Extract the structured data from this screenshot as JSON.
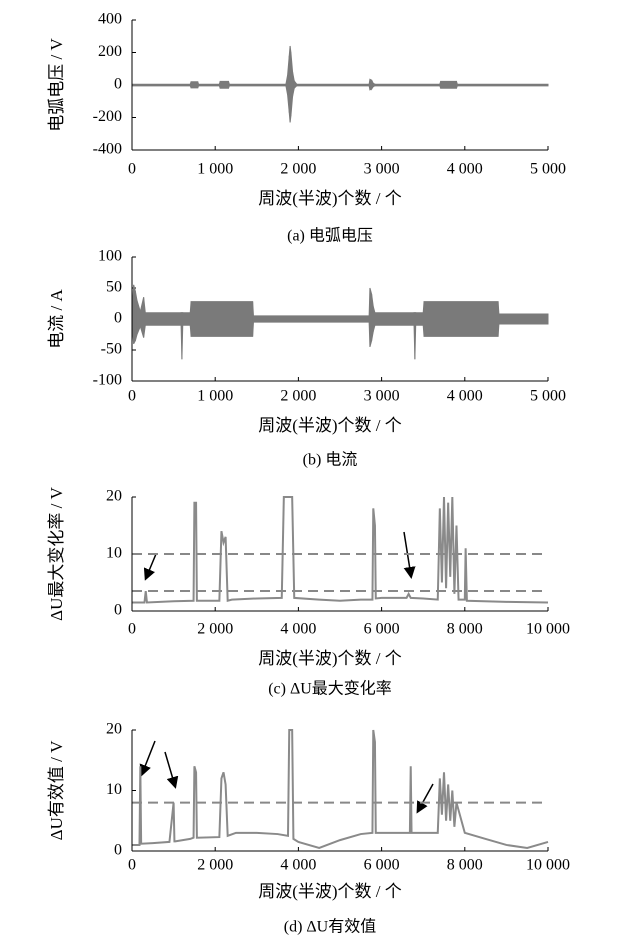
{
  "chart_data": [
    {
      "type": "area",
      "caption": "(a)  电弧电压",
      "xlabel": "周波(半波)个数 / 个",
      "ylabel": "电弧电压 / V",
      "xlim": [
        0,
        5000
      ],
      "ylim": [
        -400,
        400
      ],
      "xticks": [
        0,
        {
          "value": 1000,
          "label": "1 000"
        },
        {
          "value": 2000,
          "label": "2 000"
        },
        {
          "value": 3000,
          "label": "3 000"
        },
        {
          "value": 4000,
          "label": "4 000"
        },
        {
          "value": 5000,
          "label": "5 000"
        }
      ],
      "yticks": [
        -400,
        -200,
        0,
        200,
        400
      ],
      "x": [
        0,
        700,
        710,
        790,
        800,
        1050,
        1060,
        1160,
        1170,
        1850,
        1870,
        1890,
        1900,
        1910,
        1930,
        1950,
        1980,
        2850,
        2860,
        2880,
        2900,
        2920,
        3700,
        3710,
        3900,
        3910,
        5000
      ],
      "series": [
        {
          "color": "#7a7a7a",
          "values": [
            5,
            5,
            20,
            20,
            5,
            5,
            22,
            22,
            5,
            5,
            60,
            180,
            240,
            200,
            80,
            25,
            5,
            5,
            35,
            30,
            10,
            5,
            5,
            22,
            22,
            5,
            5
          ]
        },
        {
          "color": "#7a7a7a",
          "values": [
            -5,
            -5,
            -18,
            -18,
            -5,
            -5,
            -20,
            -20,
            -5,
            -5,
            -60,
            -170,
            -230,
            -190,
            -70,
            -20,
            -5,
            -5,
            -30,
            -25,
            -10,
            -5,
            -5,
            -20,
            -20,
            -5,
            -5
          ]
        }
      ]
    },
    {
      "type": "area",
      "caption": "(b)  电流",
      "xlabel": "周波(半波)个数 / 个",
      "ylabel": "电流 / A",
      "xlim": [
        0,
        5000
      ],
      "ylim": [
        -100,
        100
      ],
      "xticks": [
        0,
        {
          "value": 1000,
          "label": "1 000"
        },
        {
          "value": 2000,
          "label": "2 000"
        },
        {
          "value": 3000,
          "label": "3 000"
        },
        {
          "value": 4000,
          "label": "4 000"
        },
        {
          "value": 5000,
          "label": "5 000"
        }
      ],
      "yticks": [
        -100,
        -50,
        0,
        50,
        100
      ],
      "x": [
        0,
        20,
        40,
        60,
        100,
        140,
        160,
        590,
        600,
        610,
        700,
        710,
        1450,
        1460,
        2850,
        2860,
        2880,
        2900,
        2920,
        3390,
        3400,
        3410,
        3500,
        3510,
        4400,
        4410,
        5000
      ],
      "series": [
        {
          "color": "#7a7a7a",
          "values": [
            10,
            55,
            45,
            30,
            12,
            35,
            10,
            10,
            10,
            10,
            10,
            28,
            28,
            5,
            5,
            50,
            40,
            20,
            10,
            10,
            10,
            10,
            10,
            28,
            28,
            8,
            8
          ]
        },
        {
          "color": "#7a7a7a",
          "values": [
            -10,
            -40,
            -35,
            -25,
            -12,
            -30,
            -10,
            -10,
            -65,
            -10,
            -10,
            -28,
            -28,
            -5,
            -5,
            -45,
            -35,
            -20,
            -10,
            -10,
            -65,
            -10,
            -10,
            -28,
            -28,
            -8,
            -8
          ]
        }
      ]
    },
    {
      "type": "line",
      "caption": "(c)  ΔU最大变化率",
      "xlabel": "周波(半波)个数 / 个",
      "ylabel": "ΔU最大变化率 / V",
      "xlim": [
        0,
        10000
      ],
      "ylim": [
        0,
        20
      ],
      "xticks": [
        0,
        {
          "value": 2000,
          "label": "2 000"
        },
        {
          "value": 4000,
          "label": "4 000"
        },
        {
          "value": 6000,
          "label": "6 000"
        },
        {
          "value": 8000,
          "label": "8 000"
        },
        {
          "value": 10000,
          "label": "10 000"
        }
      ],
      "yticks": [
        0,
        10,
        20
      ],
      "hlines": [
        10,
        3.5
      ],
      "x": [
        0,
        300,
        330,
        360,
        1000,
        1480,
        1500,
        1540,
        1560,
        2100,
        2150,
        2200,
        2250,
        2300,
        2400,
        3000,
        3600,
        3650,
        3700,
        3800,
        3850,
        3900,
        4500,
        5000,
        5500,
        5780,
        5800,
        5840,
        5860,
        6000,
        6600,
        6650,
        6700,
        7000,
        7350,
        7400,
        7450,
        7500,
        7550,
        7600,
        7650,
        7700,
        7750,
        7800,
        7850,
        8000,
        8020,
        8050,
        9000,
        10000
      ],
      "series": [
        {
          "color": "#8a8a8a",
          "values": [
            1.5,
            1.5,
            3.5,
            1.5,
            1.7,
            1.8,
            19,
            19,
            1.8,
            1.8,
            14,
            12,
            13,
            1.8,
            2,
            2.2,
            2.3,
            20,
            20,
            20,
            20,
            2.3,
            2,
            1.8,
            2,
            2,
            18,
            15,
            2.2,
            2.3,
            2.3,
            3,
            2.3,
            2.2,
            2,
            18,
            5,
            20,
            4,
            19,
            6,
            20,
            3,
            15,
            2,
            2,
            11,
            1.8,
            1.6,
            1.5
          ]
        }
      ]
    },
    {
      "type": "line",
      "caption": "(d) ΔU有效值",
      "xlabel": "周波(半波)个数 / 个",
      "ylabel": "ΔU有效值 / V",
      "xlim": [
        0,
        10000
      ],
      "ylim": [
        0,
        20
      ],
      "xticks": [
        0,
        {
          "value": 2000,
          "label": "2 000"
        },
        {
          "value": 4000,
          "label": "4 000"
        },
        {
          "value": 6000,
          "label": "6 000"
        },
        {
          "value": 8000,
          "label": "8 000"
        },
        {
          "value": 10000,
          "label": "10 000"
        }
      ],
      "yticks": [
        0,
        10,
        20
      ],
      "hlines": [
        8
      ],
      "x": [
        0,
        180,
        200,
        220,
        500,
        900,
        1000,
        1020,
        1040,
        1400,
        1480,
        1500,
        1540,
        1560,
        2100,
        2150,
        2200,
        2250,
        2300,
        2500,
        3000,
        3500,
        3750,
        3780,
        3850,
        3880,
        4000,
        4500,
        5000,
        5500,
        5780,
        5800,
        5840,
        5860,
        6200,
        6600,
        6680,
        6700,
        6720,
        7000,
        7350,
        7400,
        7450,
        7500,
        7550,
        7600,
        7650,
        7700,
        7750,
        7800,
        8000,
        8500,
        9000,
        9500,
        10000
      ],
      "series": [
        {
          "color": "#8a8a8a",
          "values": [
            1,
            1,
            14,
            1.2,
            1.3,
            1.5,
            8,
            1.6,
            1.6,
            2,
            2.2,
            14,
            13,
            2.2,
            2.3,
            12,
            13,
            11,
            2.5,
            3,
            3,
            2.8,
            2.5,
            20,
            20,
            2,
            1.5,
            0.5,
            1.8,
            2.8,
            3,
            20,
            18,
            3,
            3,
            3,
            3,
            14,
            3,
            3,
            3,
            12,
            6,
            13,
            5,
            11,
            5,
            10,
            4,
            8,
            3,
            2,
            1,
            0.5,
            1.5
          ]
        }
      ]
    }
  ]
}
